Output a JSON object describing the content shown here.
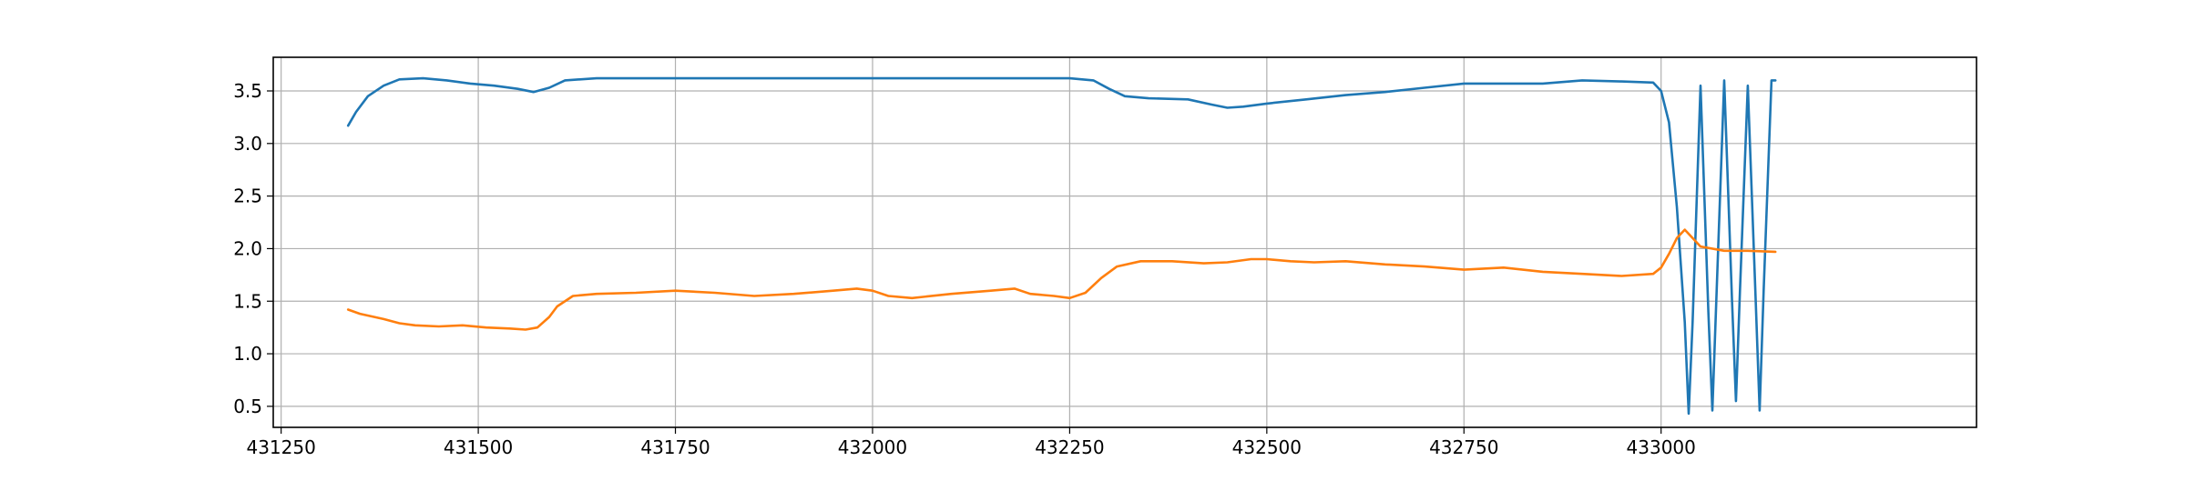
{
  "chart_data": {
    "type": "line",
    "title": "",
    "xlabel": "",
    "ylabel": "",
    "xlim": [
      431240,
      433400
    ],
    "ylim": [
      0.3,
      3.82
    ],
    "x_ticks": [
      431250,
      431500,
      431750,
      432000,
      432250,
      432500,
      432750,
      433000
    ],
    "x_tick_labels": [
      "431250",
      "431500",
      "431750",
      "432000",
      "432250",
      "432500",
      "432750",
      "433000"
    ],
    "y_ticks": [
      0.5,
      1.0,
      1.5,
      2.0,
      2.5,
      3.0,
      3.5
    ],
    "y_tick_labels": [
      "0.5",
      "1.0",
      "1.5",
      "2.0",
      "2.5",
      "3.0",
      "3.5"
    ],
    "grid": true,
    "legend": "none",
    "series": [
      {
        "color": "#1f77b4",
        "x": [
          431335,
          431345,
          431360,
          431380,
          431400,
          431430,
          431460,
          431490,
          431520,
          431550,
          431570,
          431590,
          431610,
          431650,
          431700,
          431750,
          431800,
          431850,
          431900,
          431950,
          432000,
          432050,
          432100,
          432150,
          432200,
          432250,
          432280,
          432300,
          432320,
          432350,
          432400,
          432430,
          432450,
          432470,
          432500,
          432550,
          432600,
          432650,
          432700,
          432750,
          432800,
          432850,
          432900,
          432950,
          432990,
          433000,
          433010,
          433020,
          433030,
          433035,
          433040,
          433050,
          433060,
          433065,
          433070,
          433080,
          433090,
          433095,
          433100,
          433110,
          433120,
          433125,
          433130,
          433140,
          433145
        ],
        "y": [
          3.17,
          3.3,
          3.45,
          3.55,
          3.61,
          3.62,
          3.6,
          3.57,
          3.55,
          3.52,
          3.49,
          3.53,
          3.6,
          3.62,
          3.62,
          3.62,
          3.62,
          3.62,
          3.62,
          3.62,
          3.62,
          3.62,
          3.62,
          3.62,
          3.62,
          3.62,
          3.6,
          3.52,
          3.45,
          3.43,
          3.42,
          3.37,
          3.34,
          3.35,
          3.38,
          3.42,
          3.46,
          3.49,
          3.53,
          3.57,
          3.57,
          3.57,
          3.6,
          3.59,
          3.58,
          3.5,
          3.2,
          2.4,
          1.3,
          0.43,
          1.3,
          3.55,
          1.4,
          0.46,
          1.5,
          3.6,
          1.5,
          0.55,
          1.6,
          3.55,
          1.5,
          0.46,
          1.6,
          3.6,
          3.6
        ]
      },
      {
        "color": "#ff7f0e",
        "x": [
          431335,
          431350,
          431380,
          431400,
          431420,
          431450,
          431480,
          431510,
          431540,
          431560,
          431575,
          431590,
          431600,
          431620,
          431650,
          431700,
          431750,
          431800,
          431850,
          431900,
          431950,
          431980,
          432000,
          432020,
          432050,
          432100,
          432150,
          432180,
          432200,
          432230,
          432250,
          432270,
          432290,
          432310,
          432340,
          432380,
          432420,
          432450,
          432480,
          432500,
          432530,
          432560,
          432600,
          432650,
          432700,
          432750,
          432800,
          432850,
          432900,
          432950,
          432990,
          433000,
          433010,
          433020,
          433030,
          433050,
          433080,
          433110,
          433145
        ],
        "y": [
          1.42,
          1.38,
          1.33,
          1.29,
          1.27,
          1.26,
          1.27,
          1.25,
          1.24,
          1.23,
          1.25,
          1.35,
          1.45,
          1.55,
          1.57,
          1.58,
          1.6,
          1.58,
          1.55,
          1.57,
          1.6,
          1.62,
          1.6,
          1.55,
          1.53,
          1.57,
          1.6,
          1.62,
          1.57,
          1.55,
          1.53,
          1.58,
          1.72,
          1.83,
          1.88,
          1.88,
          1.86,
          1.87,
          1.9,
          1.9,
          1.88,
          1.87,
          1.88,
          1.85,
          1.83,
          1.8,
          1.82,
          1.78,
          1.76,
          1.74,
          1.76,
          1.82,
          1.95,
          2.1,
          2.18,
          2.02,
          1.98,
          1.98,
          1.97
        ]
      }
    ]
  }
}
